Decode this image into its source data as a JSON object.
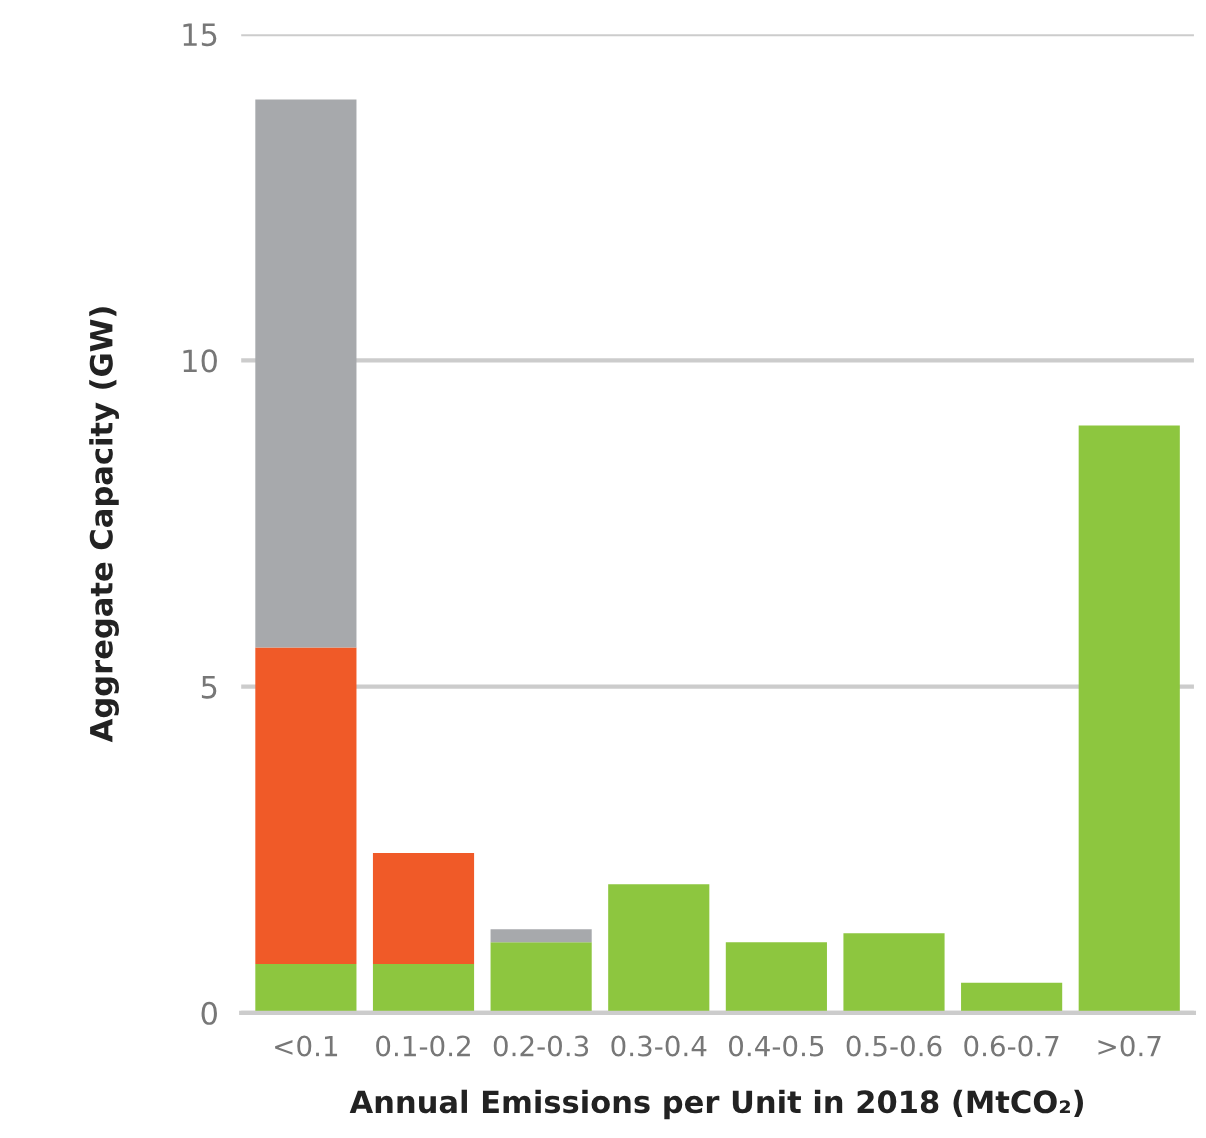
{
  "chart_data": {
    "type": "bar",
    "stacked": true,
    "xlabel": "Annual Emissions per Unit in 2018 (MtCO₂)",
    "ylabel": "Aggregate Capacity (GW)",
    "categories": [
      "<0.1",
      "0.1-0.2",
      "0.2-0.3",
      "0.3-0.4",
      "0.4-0.5",
      "0.5-0.6",
      "0.6-0.7",
      ">0.7"
    ],
    "series": [
      {
        "color": "#8dc63f",
        "values": [
          0.75,
          0.75,
          1.08,
          1.97,
          1.08,
          1.22,
          0.46,
          9.0
        ]
      },
      {
        "color": "#f05a28",
        "values": [
          4.85,
          1.7,
          null,
          null,
          null,
          null,
          null,
          null
        ]
      },
      {
        "color": "#a7a9ac",
        "values": [
          8.4,
          null,
          0.2,
          null,
          null,
          null,
          null,
          null
        ]
      }
    ],
    "ylim": [
      0,
      15
    ],
    "yticks": [
      0,
      5,
      10,
      15
    ],
    "grid": "y"
  }
}
